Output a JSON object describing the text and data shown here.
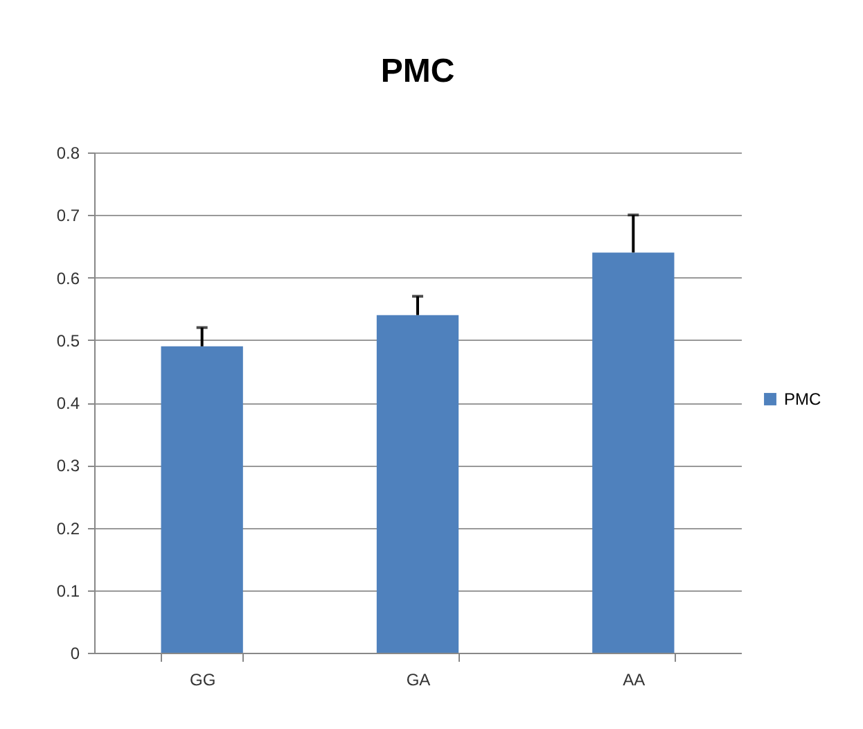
{
  "chart_data": {
    "type": "bar",
    "title": "PMC",
    "categories": [
      "GG",
      "GA",
      "AA"
    ],
    "series": [
      {
        "name": "PMC",
        "color": "#4f81bd",
        "values": [
          0.49,
          0.54,
          0.64
        ],
        "errors": [
          [
            0.49,
            0.52
          ],
          [
            0.54,
            0.57
          ],
          [
            0.64,
            0.7
          ]
        ]
      }
    ],
    "ylim": [
      0,
      0.8
    ],
    "yticks": [
      0,
      0.1,
      0.2,
      0.3,
      0.4,
      0.5,
      0.6,
      0.7,
      0.8
    ],
    "grid": "y",
    "legend": "right"
  }
}
